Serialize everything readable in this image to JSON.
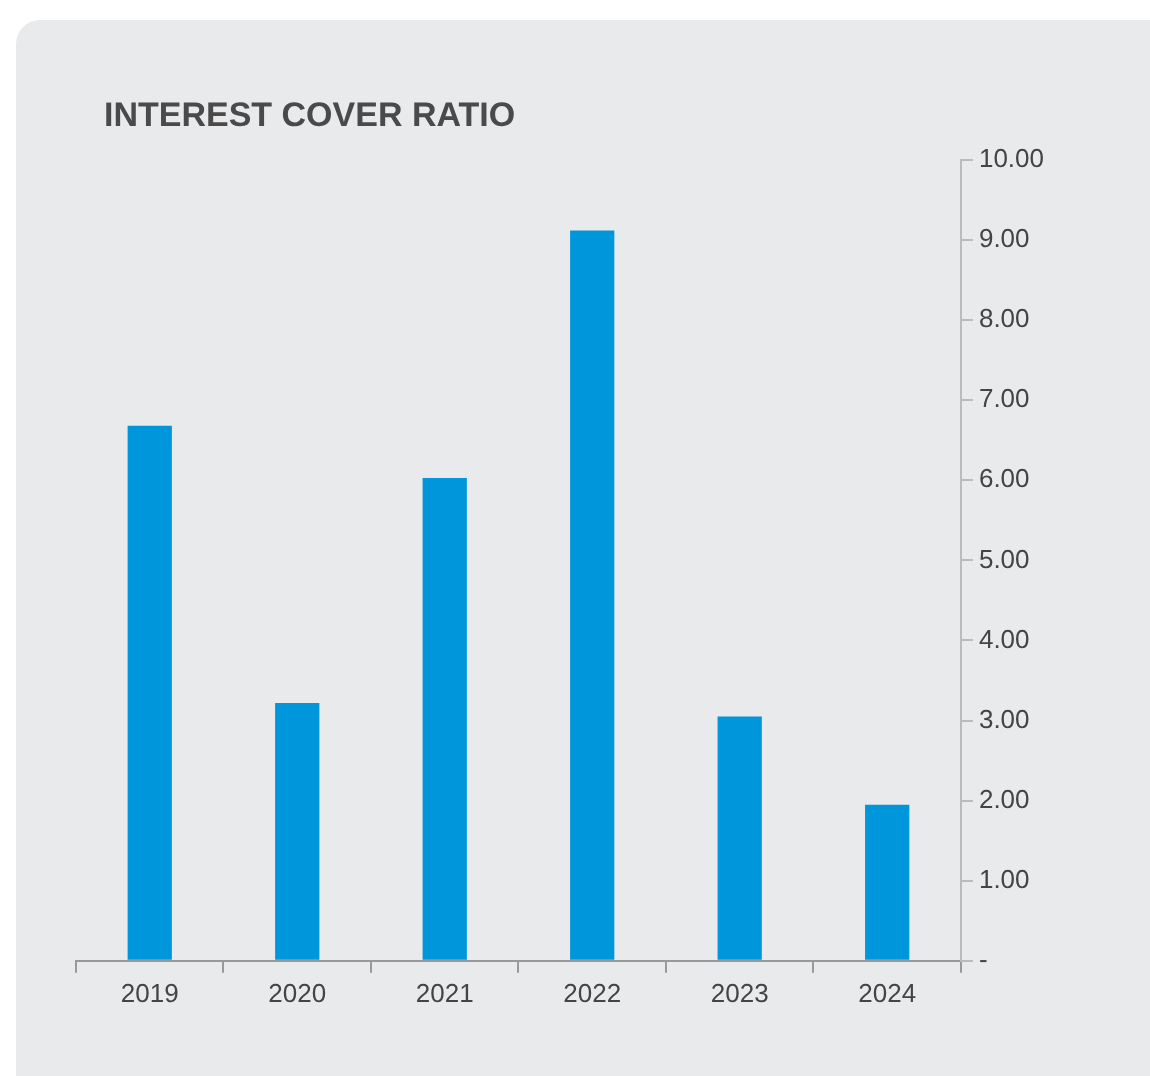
{
  "chart_data": {
    "type": "bar",
    "title": "INTEREST COVER RATIO",
    "categories": [
      "2019",
      "2020",
      "2021",
      "2022",
      "2023",
      "2024"
    ],
    "values": [
      6.68,
      3.22,
      6.03,
      9.12,
      3.05,
      1.95
    ],
    "color": "#0096db",
    "ylim": [
      0,
      10
    ],
    "yticks": [
      {
        "value": 0,
        "label": "-"
      },
      {
        "value": 1,
        "label": "1.00"
      },
      {
        "value": 2,
        "label": "2.00"
      },
      {
        "value": 3,
        "label": "3.00"
      },
      {
        "value": 4,
        "label": "4.00"
      },
      {
        "value": 5,
        "label": "5.00"
      },
      {
        "value": 6,
        "label": "6.00"
      },
      {
        "value": 7,
        "label": "7.00"
      },
      {
        "value": 8,
        "label": "8.00"
      },
      {
        "value": 9,
        "label": "9.00"
      },
      {
        "value": 10,
        "label": "10.00"
      }
    ],
    "grid": false,
    "legend": false
  }
}
